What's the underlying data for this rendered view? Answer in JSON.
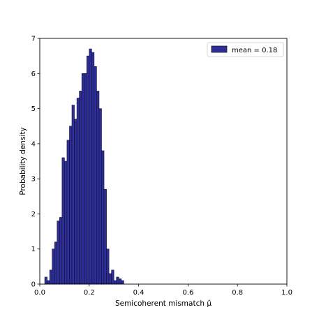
{
  "chart_data": {
    "type": "bar",
    "title": "",
    "xlabel": "Semicoherent mismatch μ̂",
    "ylabel": "Probability density",
    "xlim": [
      0.0,
      1.0
    ],
    "ylim": [
      0,
      7
    ],
    "xticks": [
      "0.0",
      "0.2",
      "0.4",
      "0.6",
      "0.8",
      "1.0"
    ],
    "yticks": [
      "0",
      "1",
      "2",
      "3",
      "4",
      "5",
      "6",
      "7"
    ],
    "grid": false,
    "legend_position": "upper right",
    "series": [
      {
        "name": "mean = 0.18",
        "color": "#2e2e99",
        "bin_width": 0.01,
        "bin_starts": [
          0.02,
          0.03,
          0.04,
          0.05,
          0.06,
          0.07,
          0.08,
          0.09,
          0.1,
          0.11,
          0.12,
          0.13,
          0.14,
          0.15,
          0.16,
          0.17,
          0.18,
          0.19,
          0.2,
          0.21,
          0.22,
          0.23,
          0.24,
          0.25,
          0.26,
          0.27,
          0.28,
          0.29,
          0.3,
          0.31,
          0.32,
          0.33
        ],
        "density": [
          0.2,
          0.1,
          0.4,
          1.0,
          1.2,
          1.8,
          1.9,
          3.6,
          3.5,
          4.1,
          4.5,
          5.1,
          4.7,
          5.3,
          5.5,
          6.0,
          6.0,
          6.5,
          6.7,
          6.6,
          6.2,
          5.5,
          5.0,
          3.8,
          2.7,
          1.0,
          0.3,
          0.4,
          0.1,
          0.2,
          0.15,
          0.1
        ]
      }
    ]
  }
}
